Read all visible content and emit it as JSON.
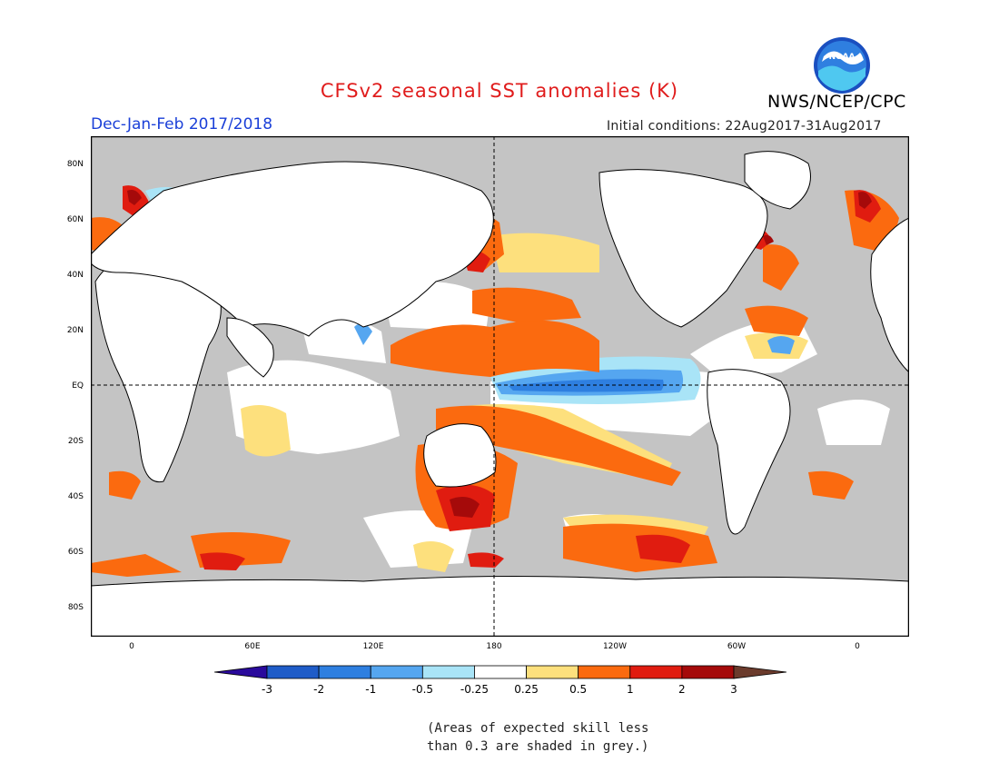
{
  "title": "CFSv2 seasonal SST anomalies (K)",
  "organization": "NWS/NCEP/CPC",
  "season": "Dec-Jan-Feb 2017/2018",
  "initial_conditions": "Initial conditions: 22Aug2017-31Aug2017",
  "logo_text": "NOAA",
  "latitude_labels": [
    "80N",
    "60N",
    "40N",
    "20N",
    "EQ",
    "20S",
    "40S",
    "60S",
    "80S"
  ],
  "longitude_labels": [
    "0",
    "60E",
    "120E",
    "180",
    "120W",
    "60W",
    "0"
  ],
  "legend": {
    "labels": [
      "-3",
      "-2",
      "-1",
      "-0.5",
      "-0.25",
      "0.25",
      "0.5",
      "1",
      "2",
      "3"
    ],
    "colors": [
      "#2a0a9c",
      "#1f5cc8",
      "#2e7fe0",
      "#55a6f0",
      "#a9e4f7",
      "#ffffff",
      "#fde07d",
      "#fb6a0f",
      "#e01c10",
      "#a50a0a",
      "#6b3b2c"
    ]
  },
  "note_lines": [
    "(Areas of expected skill less",
    "than 0.3 are shaded in grey.)"
  ],
  "colors": {
    "land": "#ffffff",
    "low_skill": "#c4c4c4",
    "title": "#e01c1c",
    "season": "#1a3fd8"
  }
}
